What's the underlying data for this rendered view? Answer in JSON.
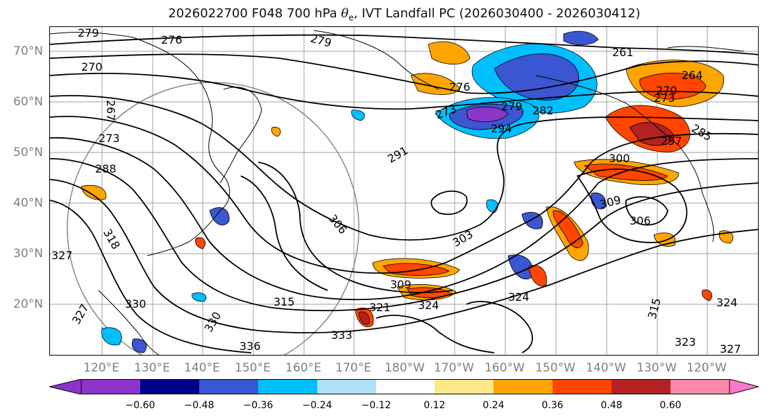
{
  "title": "2026022700 F048 700 hPa θe, IVT Landfall PC (2026030400 - 2026030412)",
  "title_parts": {
    "prefix": "2026022700 F048 700 hPa ",
    "theta": "θ",
    "sub": "e",
    "suffix": ", IVT Landfall PC (2026030400 - 2026030412)"
  },
  "lat_labels": [
    "70°N",
    "60°N",
    "50°N",
    "40°N",
    "30°N",
    "20°N"
  ],
  "lon_labels": [
    "120°E",
    "130°E",
    "140°E",
    "150°E",
    "160°E",
    "170°E",
    "180°W",
    "170°W",
    "160°W",
    "150°W",
    "140°W",
    "130°W",
    "120°W"
  ],
  "contour_labels": [
    "279",
    "276",
    "270",
    "267",
    "273",
    "288",
    "279",
    "276",
    "273",
    "279",
    "282",
    "294",
    "291",
    "261",
    "264",
    "270",
    "273",
    "285",
    "297",
    "300",
    "309",
    "306",
    "303",
    "306",
    "309",
    "318",
    "321",
    "324",
    "330",
    "333",
    "336",
    "330",
    "315",
    "327",
    "324",
    "315",
    "324",
    "327",
    "327",
    "323"
  ],
  "colorbar": {
    "ticks": [
      "−0.60",
      "−0.48",
      "−0.36",
      "−0.24",
      "−0.12",
      "0.12",
      "0.24",
      "0.36",
      "0.48",
      "0.60"
    ],
    "colors": [
      "#8e35c9",
      "#00008b",
      "#3a56d1",
      "#00bfff",
      "#b0e0f8",
      "#ffffff",
      "#ffe88a",
      "#ffa500",
      "#ff4500",
      "#b22222",
      "#ff88aa",
      "#ff77cc"
    ]
  },
  "legend_colors": {
    "contour": "#000000",
    "gridline": "#999999",
    "coast": "#000000"
  }
}
